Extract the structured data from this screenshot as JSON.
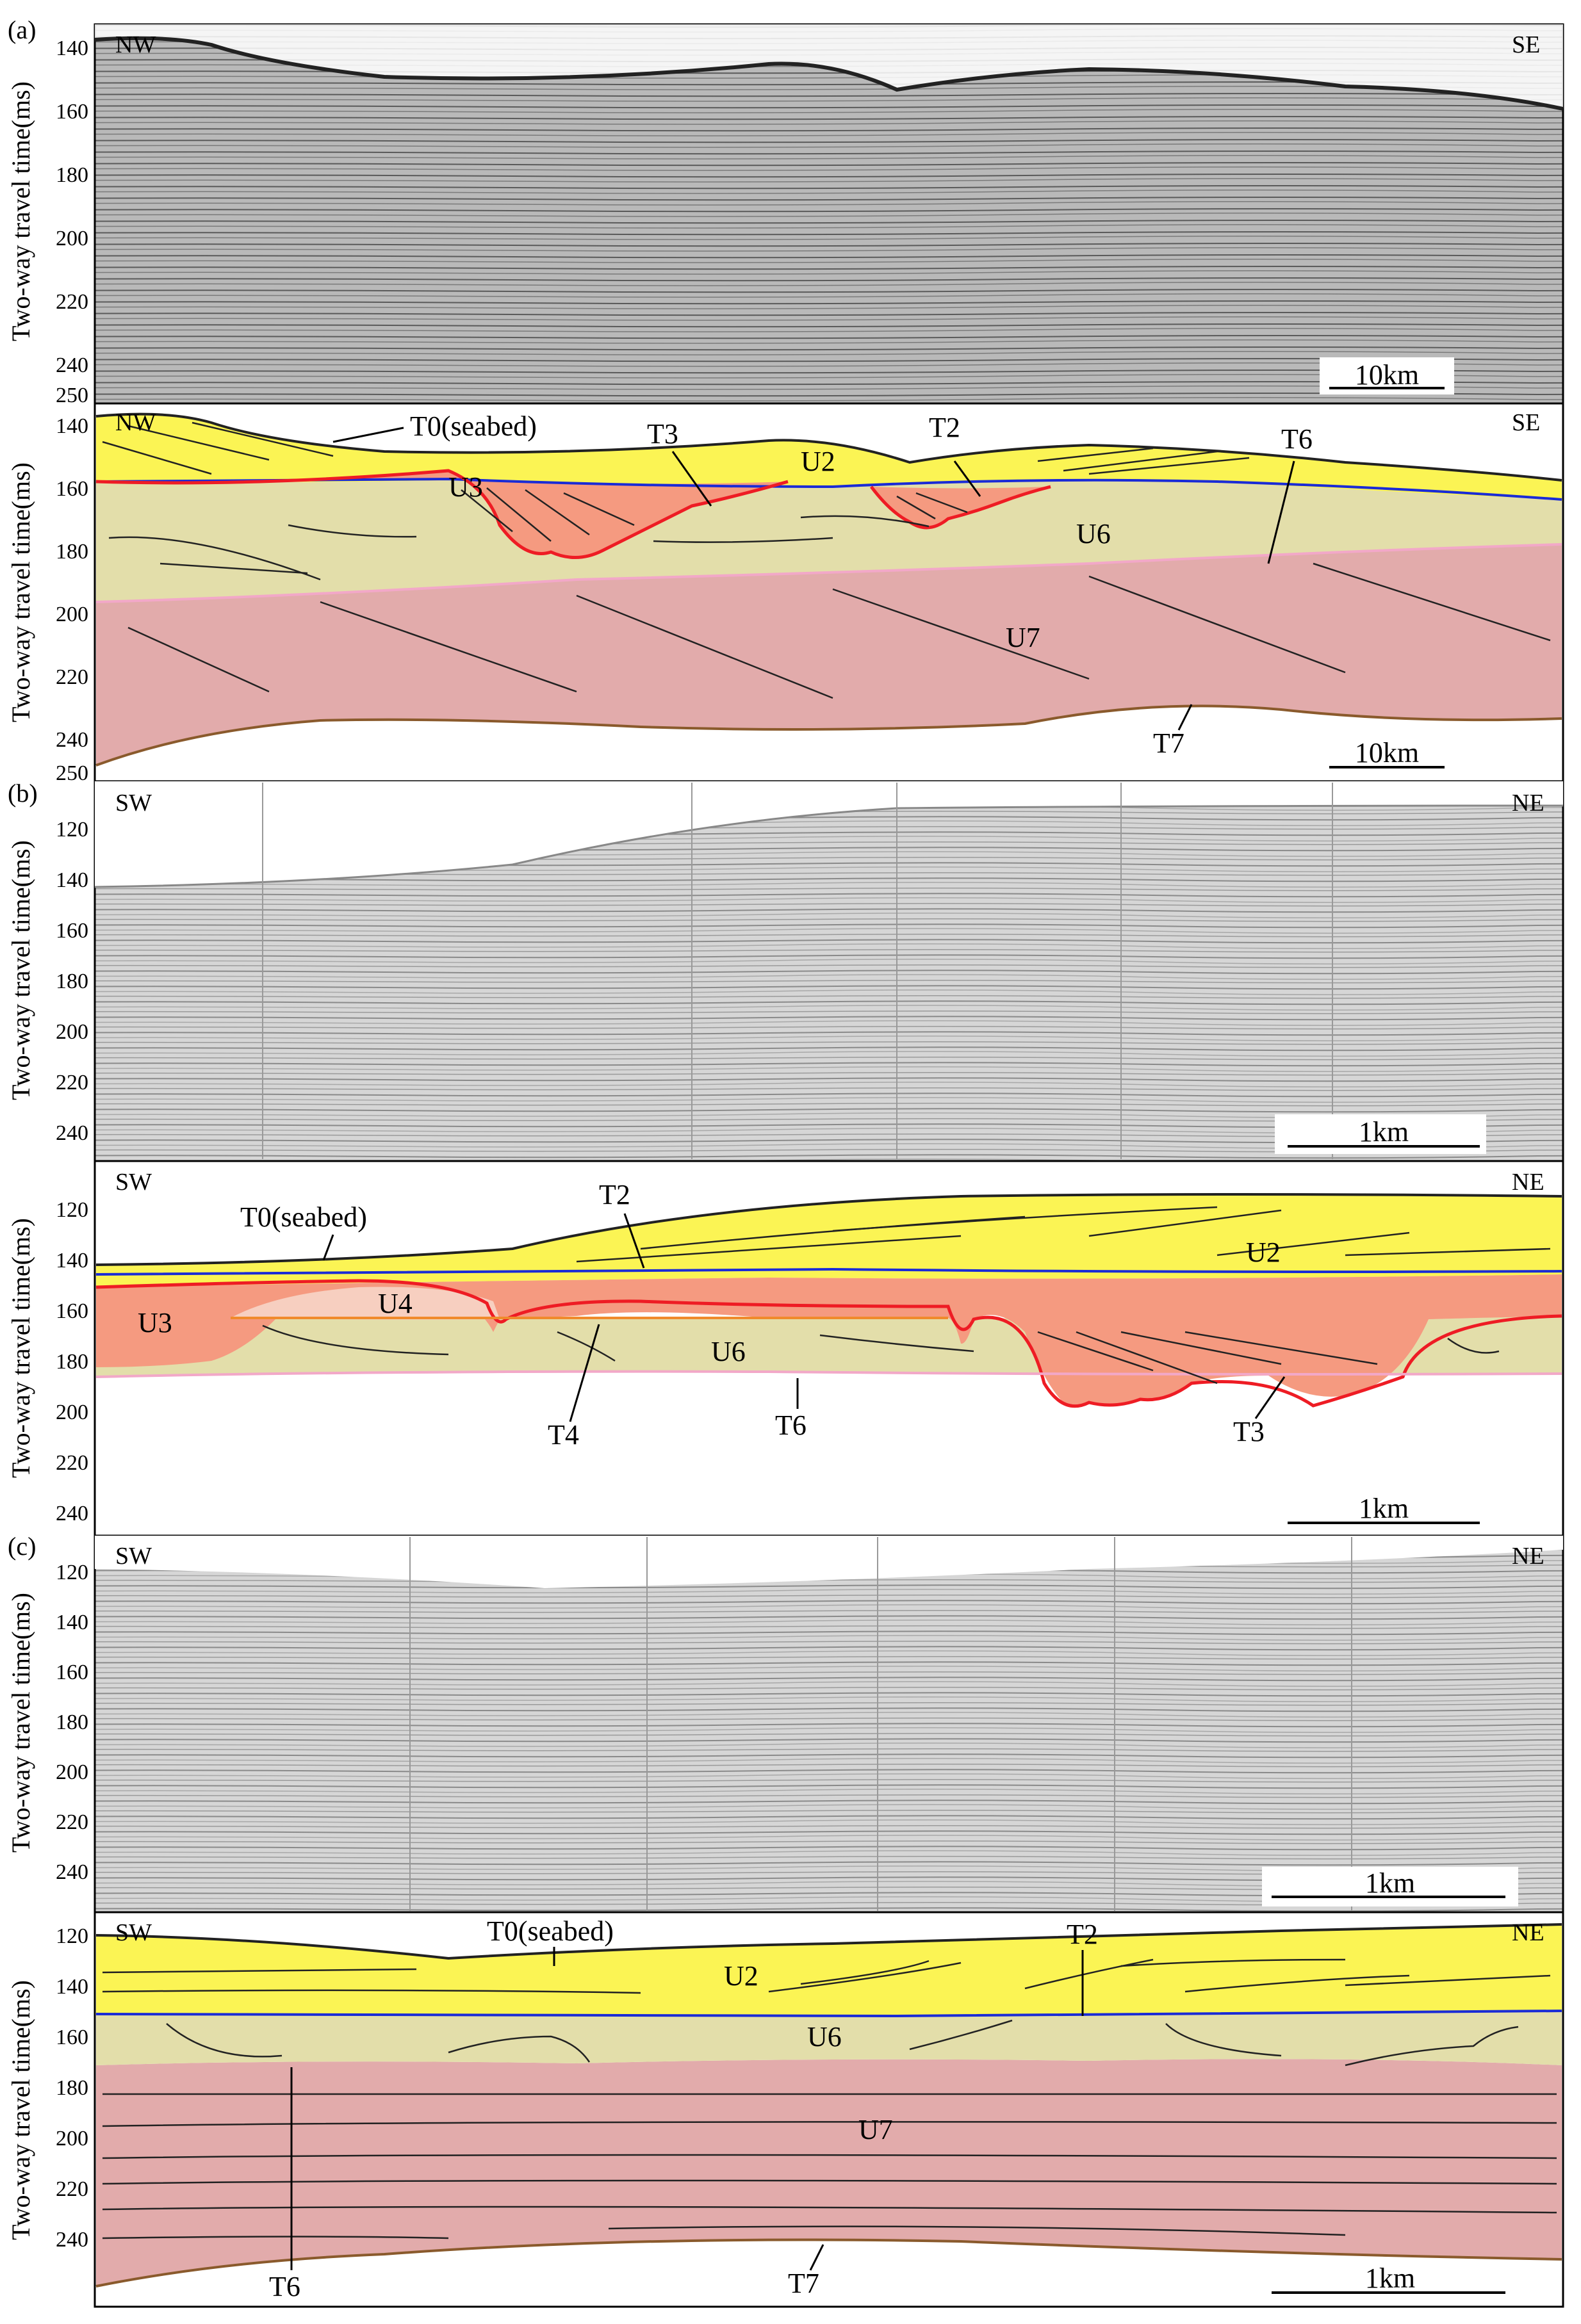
{
  "panels": [
    {
      "id": "a",
      "label": "(a)",
      "seismic": {
        "left_dir": "NW",
        "right_dir": "SE",
        "ticks": [
          "140",
          "160",
          "180",
          "200",
          "220",
          "240",
          "250"
        ],
        "scale": "10km"
      },
      "interp": {
        "left_dir": "NW",
        "right_dir": "SE",
        "ticks": [
          "140",
          "160",
          "180",
          "200",
          "220",
          "240",
          "250"
        ],
        "scale": "10km",
        "labels": {
          "t0": "T0(seabed)",
          "t3": "T3",
          "t2": "T2",
          "t6": "T6",
          "t7": "T7",
          "u3": "U3",
          "u2": "U2",
          "u6": "U6",
          "u7": "U7"
        }
      }
    },
    {
      "id": "b",
      "label": "(b)",
      "seismic": {
        "left_dir": "SW",
        "right_dir": "NE",
        "ticks": [
          "120",
          "140",
          "160",
          "180",
          "200",
          "220",
          "240"
        ],
        "scale": "1km"
      },
      "interp": {
        "left_dir": "SW",
        "right_dir": "NE",
        "ticks": [
          "120",
          "140",
          "160",
          "180",
          "200",
          "220",
          "240"
        ],
        "scale": "1km",
        "labels": {
          "t0": "T0(seabed)",
          "t2": "T2",
          "u2": "U2",
          "u3": "U3",
          "u4": "U4",
          "u6": "U6",
          "t4": "T4",
          "t6": "T6",
          "t3": "T3"
        }
      }
    },
    {
      "id": "c",
      "label": "(c)",
      "seismic": {
        "left_dir": "SW",
        "right_dir": "NE",
        "ticks": [
          "120",
          "140",
          "160",
          "180",
          "200",
          "220",
          "240"
        ],
        "scale": "1km"
      },
      "interp": {
        "left_dir": "SW",
        "right_dir": "NE",
        "ticks": [
          "120",
          "140",
          "160",
          "180",
          "200",
          "220",
          "240"
        ],
        "scale": "1km",
        "labels": {
          "t0": "T0(seabed)",
          "t2": "T2",
          "u2": "U2",
          "u6": "U6",
          "u7": "U7",
          "t6": "T6",
          "t7": "T7"
        }
      }
    }
  ],
  "y_axis_label": "Two-way travel time(ms)",
  "colors": {
    "u2": "#fbf454",
    "u3": "#f59a80",
    "u4": "#f7cfc0",
    "u6": "#e3deaa",
    "u7": "#e2abab",
    "t2_line": "#1a2bd6",
    "t3_line": "#ee1c24",
    "t4_line": "#f08a2c",
    "t6_line": "#f2a8c8",
    "t7_line": "#8a5a2c",
    "seabed_line": "#222222",
    "seismic_bg": "#cfcfcf"
  }
}
